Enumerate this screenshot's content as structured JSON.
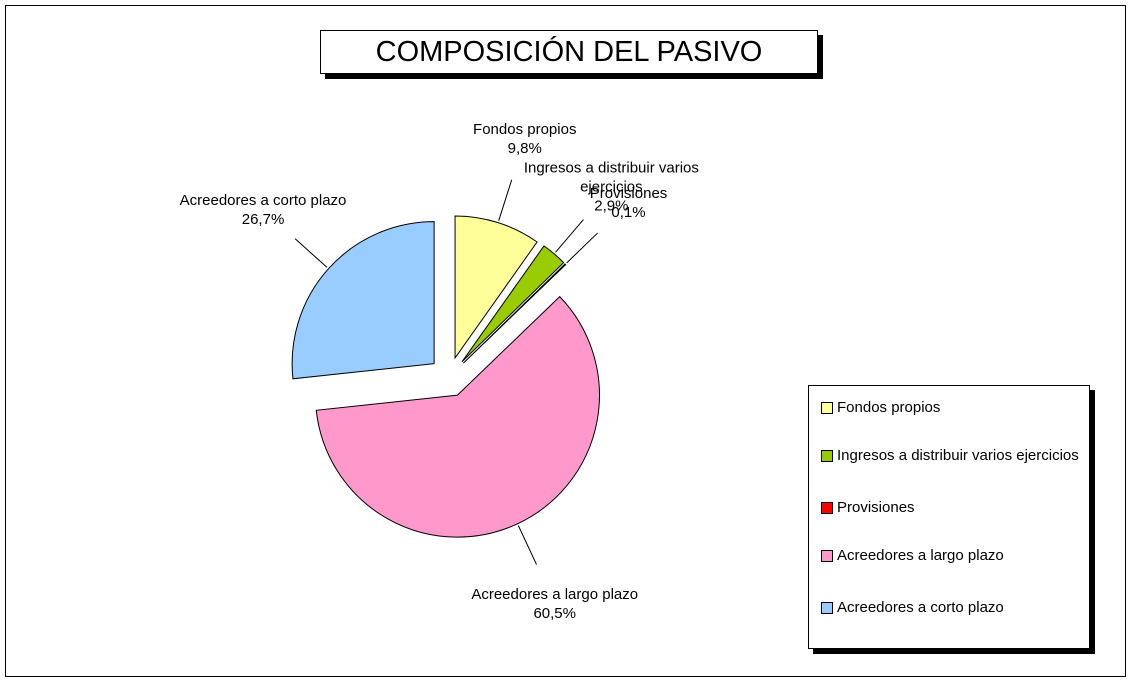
{
  "chart_data": {
    "type": "pie",
    "title": "COMPOSICIÓN DEL PASIVO",
    "categories": [
      "Fondos propios",
      "Ingresos a distribuir varios ejercicios",
      "Provisiones",
      "Acreedores a largo plazo",
      "Acreedores a corto plazo"
    ],
    "values": [
      9.8,
      2.9,
      0.1,
      60.5,
      26.7
    ],
    "value_labels": [
      "9,8%",
      "2,9%",
      "0,1%",
      "60,5%",
      "26,7%"
    ],
    "colors": [
      "#ffff99",
      "#99cc00",
      "#ff0000",
      "#ff99cc",
      "#99ccff"
    ],
    "legend": "right"
  }
}
